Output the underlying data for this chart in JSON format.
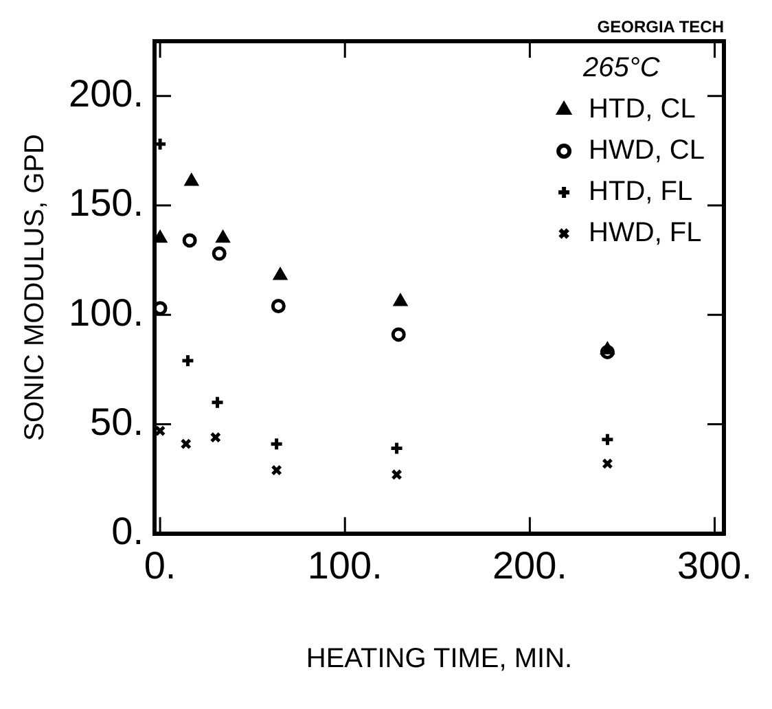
{
  "chart_data": {
    "type": "scatter",
    "xlabel": "HEATING TIME, MIN.",
    "ylabel": "SONIC MODULUS, GPD",
    "legend_title": "265°C",
    "annotations": [
      "GEORGIA TECH"
    ],
    "xlim": [
      -3,
      305
    ],
    "xticks": [
      {
        "value": 0,
        "label": "0."
      },
      {
        "value": 100,
        "label": "100."
      },
      {
        "value": 200,
        "label": "200."
      },
      {
        "value": 300,
        "label": "300."
      }
    ],
    "ylim": [
      0,
      225
    ],
    "yticks": [
      {
        "value": 0,
        "label": "0."
      },
      {
        "value": 50,
        "label": "50."
      },
      {
        "value": 100,
        "label": "100."
      },
      {
        "value": 150,
        "label": "150."
      },
      {
        "value": 200,
        "label": "200."
      }
    ],
    "grid": false,
    "legend": "top right",
    "series": [
      {
        "name": "HTD, CL",
        "color": "#000000",
        "marker": "triangle",
        "x": [
          0,
          17,
          34,
          65,
          130,
          242
        ],
        "values": [
          135,
          161,
          135,
          118,
          106,
          84
        ]
      },
      {
        "name": "HWD, CL",
        "color": "#000000",
        "marker": "circle",
        "x": [
          0,
          16,
          32,
          64,
          129,
          242
        ],
        "values": [
          103,
          134,
          128,
          104,
          91,
          83
        ]
      },
      {
        "name": "HTD, FL",
        "color": "#000000",
        "marker": "cross",
        "x": [
          0,
          15,
          31,
          63,
          128,
          242
        ],
        "values": [
          178,
          79,
          60,
          41,
          39,
          43
        ]
      },
      {
        "name": "HWD, FL",
        "color": "#000000",
        "marker": "x",
        "x": [
          0,
          14,
          30,
          63,
          128,
          242
        ],
        "values": [
          47,
          41,
          44,
          29,
          27,
          32
        ]
      }
    ]
  }
}
